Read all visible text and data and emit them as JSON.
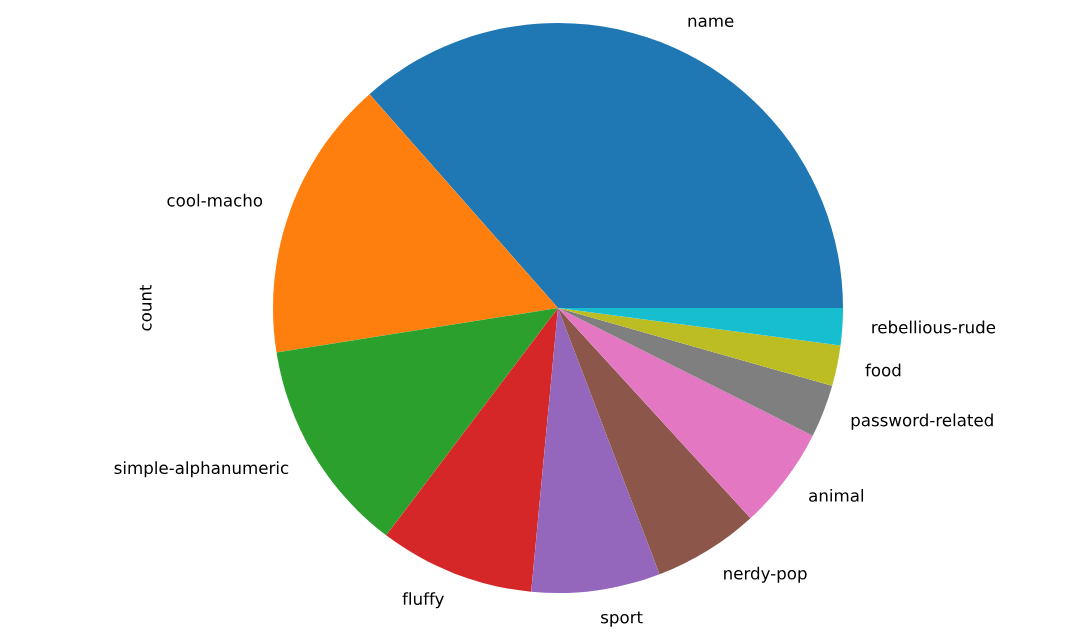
{
  "chart_data": {
    "type": "pie",
    "ylabel": "count",
    "categories": [
      "name",
      "cool-macho",
      "simple-alphanumeric",
      "fluffy",
      "sport",
      "nerdy-pop",
      "animal",
      "password-related",
      "food",
      "rebellious-rude"
    ],
    "values": [
      36.5,
      16.0,
      12.2,
      8.8,
      7.3,
      6.0,
      5.8,
      3.0,
      2.3,
      2.1
    ],
    "colors": [
      "#1f77b4",
      "#ff7f0e",
      "#2ca02c",
      "#d62728",
      "#9467bd",
      "#8c564b",
      "#e377c2",
      "#7f7f7f",
      "#bcbd22",
      "#17becf"
    ]
  }
}
